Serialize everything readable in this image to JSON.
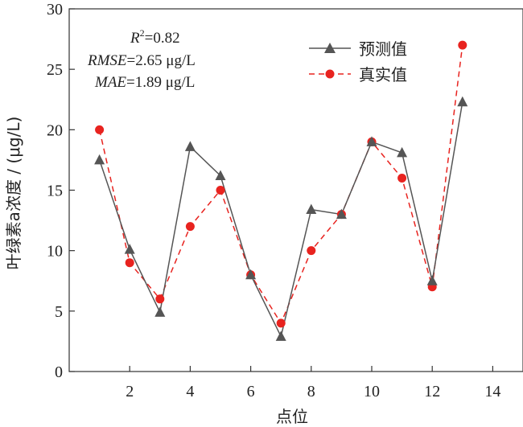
{
  "chart_data": {
    "type": "line",
    "xlabel": "点位",
    "ylabel": "叶绿素a浓度 / (μg/L)",
    "xlim": [
      0,
      15
    ],
    "ylim": [
      0,
      30
    ],
    "xticks": [
      2,
      4,
      6,
      8,
      10,
      12,
      14
    ],
    "yticks": [
      0,
      5,
      10,
      15,
      20,
      25,
      30
    ],
    "x": [
      1,
      2,
      3,
      4,
      5,
      6,
      7,
      8,
      9,
      10,
      11,
      12,
      13
    ],
    "series": [
      {
        "name": "预测值",
        "color": "#555555",
        "marker": "triangle",
        "line": "solid",
        "values": [
          17.5,
          10.1,
          4.9,
          18.6,
          16.2,
          8.0,
          2.9,
          13.4,
          13.0,
          19.0,
          18.1,
          7.5,
          22.3
        ]
      },
      {
        "name": "真实值",
        "color": "#e8231f",
        "marker": "circle",
        "line": "dashed",
        "values": [
          20.0,
          9.0,
          6.0,
          12.0,
          15.0,
          8.0,
          4.0,
          10.0,
          13.0,
          19.0,
          16.0,
          7.0,
          27.0
        ]
      }
    ],
    "legend_position": "top-right",
    "grid": false,
    "annotations": {
      "r2_label": "R",
      "r2_sup": "2",
      "r2_value": "=0.82",
      "rmse_label": "RMSE",
      "rmse_value": "=2.65 μg/L",
      "mae_label": "MAE",
      "mae_value": "=1.89 μg/L"
    }
  }
}
